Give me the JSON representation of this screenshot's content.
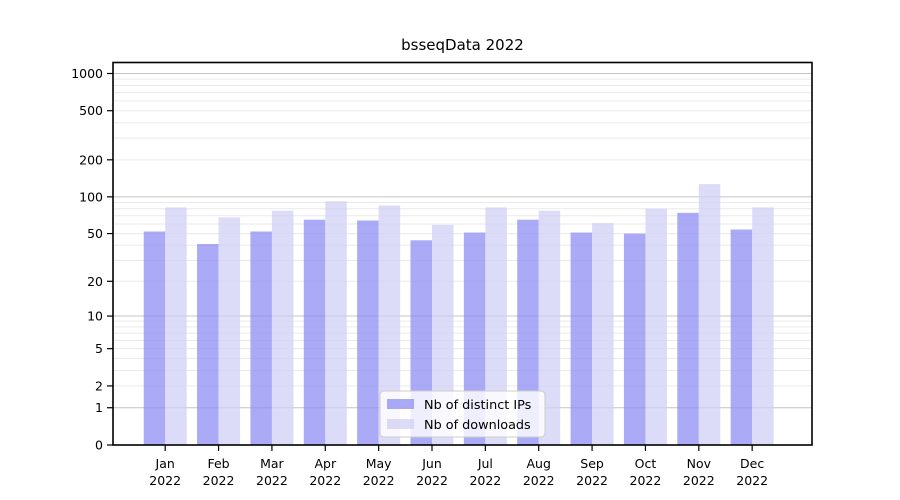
{
  "title": "bsseqData 2022",
  "chart_data": {
    "type": "bar",
    "title": "bsseqData 2022",
    "categories": [
      "Jan",
      "Feb",
      "Mar",
      "Apr",
      "May",
      "Jun",
      "Jul",
      "Aug",
      "Sep",
      "Oct",
      "Nov",
      "Dec"
    ],
    "category_year": "2022",
    "series": [
      {
        "name": "Nb of distinct IPs",
        "color": "#8e8ef3",
        "values": [
          52,
          41,
          52,
          65,
          64,
          44,
          51,
          65,
          51,
          50,
          74,
          54
        ]
      },
      {
        "name": "Nb of downloads",
        "color": "#d0d0f6",
        "values": [
          82,
          68,
          77,
          92,
          85,
          59,
          82,
          77,
          61,
          80,
          127,
          82
        ]
      }
    ],
    "xlabel": "",
    "ylabel": "",
    "y_scale": "log1p",
    "y_ticks": [
      0,
      1,
      2,
      5,
      10,
      20,
      50,
      100,
      200,
      500,
      1000
    ],
    "ylim": [
      0,
      1230
    ],
    "grid": "on",
    "legend_position": "lower center",
    "colors": {
      "major_grid": "#c4c4c4",
      "minor_grid": "#eaeaea",
      "axis": "#000000",
      "legend_border": "#cccccc"
    }
  }
}
